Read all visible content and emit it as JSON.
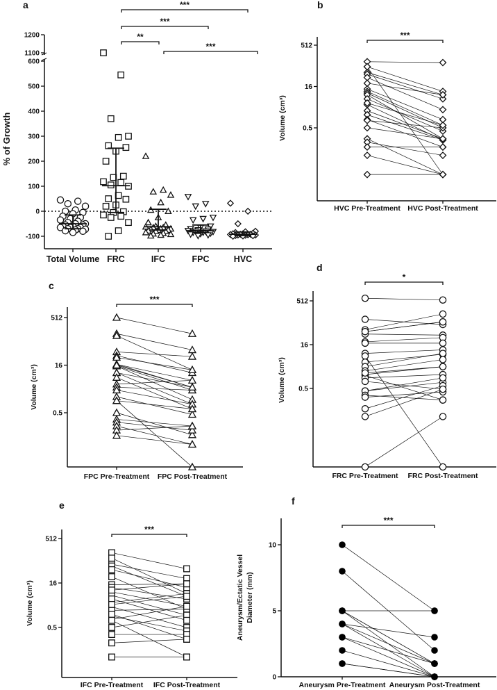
{
  "chart_data": [
    {
      "panel": "a",
      "type": "scatter",
      "ylabel": "% of Growth",
      "yticks": [
        "1200",
        "1100",
        "600",
        "500",
        "400",
        "300",
        "200",
        "100",
        "0",
        "-100"
      ],
      "ytick_values": [
        1200,
        1100,
        600,
        500,
        400,
        300,
        200,
        100,
        0,
        -100
      ],
      "ylim_lower": [
        -150,
        600
      ],
      "ylim_upper": [
        1100,
        1200
      ],
      "reference_line": 0,
      "categories": [
        "Total Volume",
        "FRC",
        "IFC",
        "FPC",
        "HVC"
      ],
      "series": [
        {
          "name": "Total Volume",
          "marker": "circle",
          "center": -50,
          "lower": -70,
          "upper": -15,
          "values": [
            45,
            40,
            30,
            20,
            5,
            0,
            -5,
            -10,
            -20,
            -25,
            -30,
            -35,
            -40,
            -45,
            -50,
            -50,
            -55,
            -55,
            -60,
            -60,
            -65,
            -65,
            -65,
            -70,
            -70,
            -72,
            -75,
            -78,
            -80,
            -85
          ]
        },
        {
          "name": "FRC",
          "marker": "square",
          "center": 102,
          "lower": -5,
          "upper": 252,
          "values": [
            1100,
            545,
            370,
            300,
            295,
            262,
            255,
            240,
            200,
            140,
            135,
            118,
            115,
            105,
            100,
            63,
            50,
            48,
            25,
            20,
            -2,
            -5,
            -15,
            -20,
            -25,
            -45,
            -78,
            -100
          ]
        },
        {
          "name": "IFC",
          "marker": "triangle-up",
          "center": -62,
          "lower": -75,
          "upper": 8,
          "values": [
            220,
            85,
            78,
            65,
            35,
            5,
            0,
            -25,
            -45,
            -55,
            -60,
            -62,
            -65,
            -65,
            -70,
            -70,
            -72,
            -75,
            -75,
            -78,
            -80,
            -80,
            -85,
            -88,
            -90,
            -92,
            -95,
            -98
          ]
        },
        {
          "name": "FPC",
          "marker": "triangle-down",
          "center": -78,
          "lower": -85,
          "upper": -55,
          "values": [
            58,
            30,
            20,
            -25,
            -30,
            -35,
            -60,
            -65,
            -70,
            -72,
            -75,
            -78,
            -80,
            -80,
            -82,
            -85,
            -85,
            -88,
            -90,
            -92,
            -95,
            -98
          ]
        },
        {
          "name": "HVC",
          "marker": "diamond",
          "center": -92,
          "lower": -97,
          "upper": -83,
          "values": [
            32,
            0,
            -50,
            -80,
            -82,
            -85,
            -88,
            -90,
            -90,
            -92,
            -92,
            -93,
            -94,
            -95,
            -95,
            -96,
            -97,
            -98,
            -99,
            -100
          ]
        }
      ],
      "comparisons": [
        {
          "from": "FRC",
          "to": "HVC",
          "label": "***"
        },
        {
          "from": "FRC",
          "to": "FPC",
          "label": "***"
        },
        {
          "from": "FRC",
          "to": "IFC",
          "label": "**"
        },
        {
          "from": "IFC",
          "to": "HVC",
          "label": "***"
        }
      ]
    },
    {
      "panel": "b",
      "type": "line",
      "scale": "log2",
      "ylabel": "Volume (cm³)",
      "yticks": [
        "512",
        "16",
        "0.5"
      ],
      "ytick_values": [
        512,
        16,
        0.5
      ],
      "categories": [
        "HVC Pre-Treatment",
        "HVC Post-Treatment"
      ],
      "marker": "diamond",
      "significance": "***",
      "pairs": [
        [
          128,
          119
        ],
        [
          84,
          10.6
        ],
        [
          52,
          8
        ],
        [
          45,
          5.66
        ],
        [
          34,
          2.3
        ],
        [
          21,
          8
        ],
        [
          13,
          1
        ],
        [
          10.6,
          0.62
        ],
        [
          9.2,
          0.5
        ],
        [
          8,
          0.2
        ],
        [
          5.66,
          0.38
        ],
        [
          3.5,
          0.18
        ],
        [
          2.1,
          0.2
        ],
        [
          1.5,
          0.18
        ],
        [
          1,
          0.1
        ],
        [
          0.93,
          0.5
        ],
        [
          0.5,
          0.2
        ],
        [
          0.2,
          0.01
        ],
        [
          0.15,
          0.05
        ],
        [
          0.1,
          0.1
        ],
        [
          0.05,
          0.01
        ],
        [
          0.01,
          0.01
        ],
        [
          84,
          0.01
        ],
        [
          4,
          0.62
        ]
      ]
    },
    {
      "panel": "c",
      "type": "line",
      "scale": "log2",
      "ylabel": "Volume (cm³)",
      "yticks": [
        "512",
        "16",
        "0.5"
      ],
      "ytick_values": [
        512,
        16,
        0.5
      ],
      "categories": [
        "FPC Pre-Treatment",
        "FPC Post-Treatment"
      ],
      "marker": "triangle-up",
      "significance": "***",
      "pairs": [
        [
          512,
          158
        ],
        [
          158,
          48.5
        ],
        [
          137,
          11.3
        ],
        [
          42,
          30
        ],
        [
          32,
          9.2
        ],
        [
          28,
          11.3
        ],
        [
          17,
          5.3
        ],
        [
          17,
          3.2
        ],
        [
          15,
          2.6
        ],
        [
          15,
          1.3
        ],
        [
          9.2,
          0.93
        ],
        [
          9.2,
          3.2
        ],
        [
          6.5,
          0.66
        ],
        [
          4,
          5.3
        ],
        [
          3.2,
          2.6
        ],
        [
          2.6,
          0.93
        ],
        [
          1.6,
          0.44
        ],
        [
          1.2,
          0.66
        ],
        [
          1.2,
          0.0096
        ],
        [
          0.5,
          0.1
        ],
        [
          0.31,
          0.19
        ],
        [
          0.25,
          0.14
        ],
        [
          0.19,
          0.05
        ],
        [
          0.14,
          0.19
        ],
        [
          0.095,
          0.05
        ],
        [
          16,
          3.2
        ]
      ]
    },
    {
      "panel": "d",
      "type": "line",
      "scale": "log2",
      "ylabel": "Volume (cm³)",
      "yticks": [
        "512",
        "16",
        "0.5"
      ],
      "ytick_values": [
        512,
        16,
        0.5
      ],
      "categories": [
        "FRC Pre-Treatment",
        "FRC Post-Treatment"
      ],
      "marker": "circle",
      "significance": "*",
      "pairs": [
        [
          630,
          549
        ],
        [
          119,
          79
        ],
        [
          52,
          181
        ],
        [
          45,
          97
        ],
        [
          37,
          34
        ],
        [
          20,
          28
        ],
        [
          18,
          18
        ],
        [
          8,
          10.6
        ],
        [
          6.5,
          0.001
        ],
        [
          4,
          7.5
        ],
        [
          2.8,
          8
        ],
        [
          2,
          4.9
        ],
        [
          1.5,
          2.8
        ],
        [
          1.4,
          0.2
        ],
        [
          1.15,
          1.5
        ],
        [
          0.87,
          0.47
        ],
        [
          0.41,
          0.81
        ],
        [
          0.41,
          1.15
        ],
        [
          0.29,
          0.2
        ],
        [
          0.25,
          0.38
        ],
        [
          0.1,
          0.62
        ],
        [
          0.054,
          0.47
        ],
        [
          0.001,
          0.054
        ],
        [
          1.7,
          2.8
        ],
        [
          45,
          97
        ]
      ]
    },
    {
      "panel": "e",
      "type": "line",
      "scale": "log2",
      "ylabel": "Volume (cm³)",
      "yticks": [
        "512",
        "16",
        "0.5"
      ],
      "ytick_values": [
        512,
        16,
        0.5
      ],
      "categories": [
        "IFC Pre-Treatment",
        "IFC Post-Treatment"
      ],
      "marker": "square",
      "significance": "***",
      "pairs": [
        [
          169,
          48.5
        ],
        [
          111,
          7
        ],
        [
          69,
          22.6
        ],
        [
          60,
          5.66
        ],
        [
          45,
          11.3
        ],
        [
          26,
          2.1
        ],
        [
          14,
          15
        ],
        [
          11.3,
          4.6
        ],
        [
          8,
          2.6
        ],
        [
          6.1,
          1.3
        ],
        [
          3.5,
          7
        ],
        [
          2.5,
          0.5
        ],
        [
          1.9,
          2.1
        ],
        [
          1.2,
          0.38
        ],
        [
          0.93,
          2.6
        ],
        [
          0.87,
          0.05
        ],
        [
          0.5,
          1.3
        ],
        [
          0.29,
          0.29
        ],
        [
          0.15,
          0.2
        ],
        [
          0.05,
          0.05
        ],
        [
          9.2,
          15
        ],
        [
          4.6,
          0.87
        ],
        [
          1.4,
          0.2
        ],
        [
          3.0,
          5.66
        ]
      ]
    },
    {
      "panel": "f",
      "type": "line",
      "scale": "linear",
      "ylabel": [
        "Aneurysm/Ectatic Vessel",
        "Diameter (mm)"
      ],
      "yticks": [
        "10",
        "5",
        "0"
      ],
      "ytick_values": [
        10,
        5,
        0
      ],
      "ylim": [
        0,
        12
      ],
      "categories": [
        "Aneurysm Pre-Treatment",
        "Aneurysm Post-Treatment"
      ],
      "marker": "filled-circle",
      "significance": "***",
      "pairs": [
        [
          10,
          5
        ],
        [
          8,
          2
        ],
        [
          5,
          5
        ],
        [
          5,
          1
        ],
        [
          5,
          1
        ],
        [
          5,
          0
        ],
        [
          4,
          3
        ],
        [
          4,
          1
        ],
        [
          4,
          0
        ],
        [
          3,
          1
        ],
        [
          3,
          0
        ],
        [
          2,
          0
        ],
        [
          1,
          0
        ],
        [
          1,
          0
        ]
      ]
    }
  ]
}
